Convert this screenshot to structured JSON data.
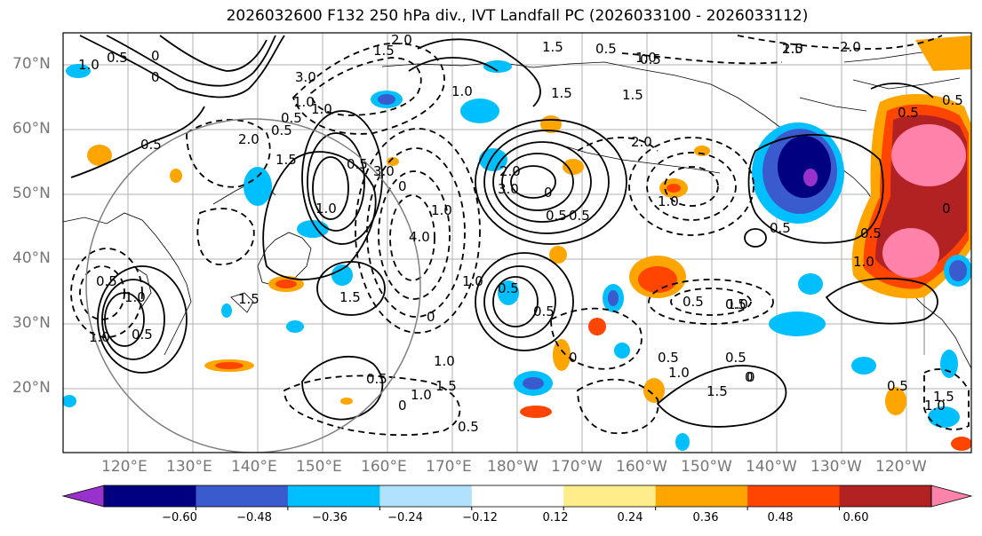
{
  "title": "2026032600 F132 250 hPa div., IVT Landfall PC (2026033100 - 2026033112)",
  "lat_labels": [
    "70°N",
    "60°N",
    "50°N",
    "40°N",
    "30°N",
    "20°N"
  ],
  "lon_labels": [
    "120°E",
    "130°E",
    "140°E",
    "150°E",
    "160°E",
    "170°E",
    "180°W",
    "170°W",
    "160°W",
    "150°W",
    "140°W",
    "130°W",
    "120°W"
  ],
  "colorbar": {
    "colors": [
      "#9932cc",
      "#000080",
      "#3a5bcd",
      "#00bfff",
      "#b0e2ff",
      "#ffffff",
      "#ffec8b",
      "#ffa500",
      "#ff4500",
      "#b22222",
      "#ff82ab"
    ],
    "ticks": [
      "−0.60",
      "−0.48",
      "−0.36",
      "−0.24",
      "−0.12",
      "0.12",
      "0.24",
      "0.36",
      "0.48",
      "0.60"
    ]
  },
  "contour_labels": [
    "1.0",
    "0.5",
    "0.5",
    "1.0",
    "1.5",
    "2.0",
    "0.5",
    "0",
    "3.0",
    "1.0",
    "0.5",
    "1.5",
    "2.0",
    "1.0",
    "1.5",
    "0",
    "0.5",
    "1.5",
    "2.0",
    "3.0",
    "0",
    "1.0",
    "0.5",
    "4.0",
    "0",
    "1.0",
    "2.0",
    "3.0",
    "0.5",
    "0",
    "1.0",
    "0.5",
    "1.5",
    "1.5",
    "0.5",
    "1.0",
    "1.0",
    "0.5",
    "0.5",
    "0",
    "1.0",
    "1.5",
    "1.0",
    "0.5",
    "0.5",
    "0",
    "0.5",
    "1.0",
    "0.5",
    "0.5",
    "0",
    "1.5",
    "0.5",
    "1.0",
    "0.5",
    "1.5",
    "2.0",
    "1.0",
    "1.0",
    "0.5",
    "1.5",
    "0.5",
    "0.5",
    "0.5",
    "1.0",
    "0.5",
    "1.0",
    "0.5",
    "0",
    "1.5",
    "2.0",
    "0"
  ]
}
